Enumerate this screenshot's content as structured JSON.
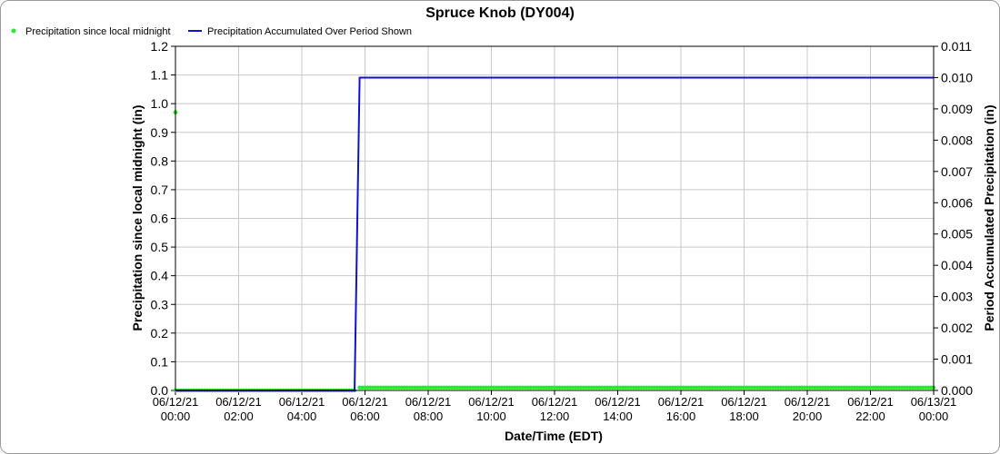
{
  "chart_data": {
    "type": "line",
    "title": "Spruce Knob (DY004)",
    "xlabel": "Date/Time (EDT)",
    "ylabel_left": "Precipitation since local midnight (in)",
    "ylabel_right": "Period Accumulated Precipitation (in)",
    "x_ticks": [
      [
        "06/12/21",
        "00:00"
      ],
      [
        "06/12/21",
        "02:00"
      ],
      [
        "06/12/21",
        "04:00"
      ],
      [
        "06/12/21",
        "06:00"
      ],
      [
        "06/12/21",
        "08:00"
      ],
      [
        "06/12/21",
        "10:00"
      ],
      [
        "06/12/21",
        "12:00"
      ],
      [
        "06/12/21",
        "14:00"
      ],
      [
        "06/12/21",
        "16:00"
      ],
      [
        "06/12/21",
        "18:00"
      ],
      [
        "06/12/21",
        "20:00"
      ],
      [
        "06/12/21",
        "22:00"
      ],
      [
        "06/13/21",
        "00:00"
      ]
    ],
    "x_range_hours": [
      0,
      24
    ],
    "y_left_ticks": [
      "0.0",
      "0.1",
      "0.2",
      "0.3",
      "0.4",
      "0.5",
      "0.6",
      "0.7",
      "0.8",
      "0.9",
      "1.0",
      "1.1",
      "1.2"
    ],
    "y_left_range": [
      0,
      1.2
    ],
    "y_right_ticks": [
      "0.000",
      "0.001",
      "0.002",
      "0.003",
      "0.004",
      "0.005",
      "0.006",
      "0.007",
      "0.008",
      "0.009",
      "0.010",
      "0.011"
    ],
    "y_right_range": [
      0,
      0.011
    ],
    "grid": true,
    "legend_position": "top-left",
    "series": [
      {
        "name": "Precipitation since local midnight",
        "axis": "left",
        "style": "points",
        "color": "#22ee22",
        "segments": [
          {
            "x_start_hours": 0,
            "x_end_hours": 5.67,
            "step_minutes": 5,
            "y": 0.0
          },
          {
            "x_start_hours": 5.83,
            "x_end_hours": 24,
            "step_minutes": 5,
            "y": 0.01
          }
        ],
        "extra_points": [
          {
            "x_hours": 0,
            "y": 0.97
          }
        ]
      },
      {
        "name": "Precipitation Accumulated Over Period Shown",
        "axis": "right",
        "style": "line",
        "color": "#1111cc",
        "points": [
          [
            0,
            0.0
          ],
          [
            5.67,
            0.0
          ],
          [
            5.83,
            0.01
          ],
          [
            24,
            0.01
          ]
        ]
      }
    ]
  }
}
